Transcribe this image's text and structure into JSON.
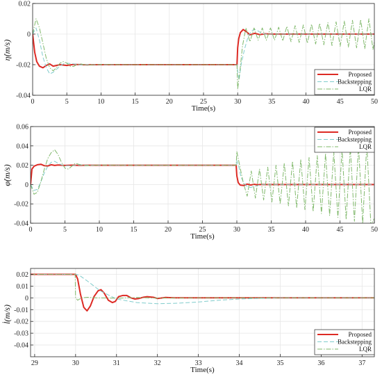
{
  "chart_data": [
    {
      "type": "line",
      "ylabel": "η̇(m/s)",
      "xlabel": "Time(s)",
      "xlim": [
        0,
        50
      ],
      "ylim": [
        -0.04,
        0.02
      ],
      "xticks": [
        0,
        5,
        10,
        15,
        20,
        25,
        30,
        35,
        40,
        45,
        50
      ],
      "yticks": [
        -0.04,
        -0.02,
        0,
        0.02
      ],
      "ytick_labels": [
        "-0.04",
        "-0.02",
        "0",
        "0.02"
      ],
      "grid": true,
      "legend_position": "bottom-right",
      "series": [
        {
          "name": "Proposed",
          "color": "#dd2a24",
          "style": "solid",
          "x": [
            0,
            0.3,
            0.6,
            1.0,
            1.5,
            2.0,
            2.5,
            3.0,
            3.5,
            4.0,
            5.0,
            6.0,
            8.0,
            10.0,
            15.0,
            20.0,
            25.0,
            29.9,
            30.0,
            30.15,
            30.4,
            30.8,
            31.3,
            31.8,
            32.5,
            33.2,
            34.0,
            35.0,
            37.0,
            40.0,
            45.0,
            50.0
          ],
          "y": [
            0,
            -0.012,
            -0.018,
            -0.021,
            -0.022,
            -0.0205,
            -0.0195,
            -0.021,
            -0.0205,
            -0.02,
            -0.0205,
            -0.0198,
            -0.0201,
            -0.02,
            -0.02,
            -0.02,
            -0.02,
            -0.02,
            -0.009,
            -0.003,
            0.001,
            0.003,
            0.0015,
            -0.0005,
            0.0005,
            -0.0003,
            0.0002,
            0,
            0,
            0,
            0,
            0
          ]
        },
        {
          "name": "Backstepping",
          "color": "#80cccc",
          "style": "dashed",
          "x": [
            0,
            0.5,
            1.0,
            1.5,
            2.0,
            2.5,
            3.0,
            3.5,
            4.0,
            4.5,
            5.0,
            6.0,
            7.0,
            8.0,
            10.0,
            15.0,
            20.0,
            25.0,
            29.9,
            30.0,
            30.2,
            30.5,
            31.0,
            31.5,
            32.0,
            32.5,
            33.0,
            33.5,
            34.0,
            35.0,
            36.0,
            37.0,
            40.0,
            45.0,
            50.0
          ],
          "y": [
            0,
            0.004,
            -0.004,
            -0.015,
            -0.022,
            -0.026,
            -0.025,
            -0.023,
            -0.021,
            -0.0195,
            -0.019,
            -0.0195,
            -0.0202,
            -0.02,
            -0.02,
            -0.02,
            -0.02,
            -0.02,
            -0.02,
            -0.024,
            -0.03,
            -0.02,
            -0.01,
            -0.002,
            0.002,
            0.003,
            0.002,
            0.0005,
            0,
            0,
            0,
            0,
            0,
            0,
            0
          ]
        },
        {
          "name": "LQR",
          "color": "#7fb86a",
          "style": "dashdot",
          "x": [
            0,
            0.5,
            1.0,
            1.5,
            2.0,
            2.5,
            3.0,
            3.5,
            4.0,
            4.5,
            5.0,
            5.5,
            6.0,
            6.5,
            7.0,
            8.0,
            10.0,
            15.0,
            20.0,
            25.0,
            29.9,
            30.0,
            30.3,
            30.7,
            31.2,
            31.8,
            32.4,
            33.0,
            33.6,
            34.2,
            34.8,
            35.4,
            36.0,
            36.6,
            37.2,
            37.8,
            38.4,
            39.0,
            39.6,
            40.2,
            40.8,
            41.4,
            42.0,
            42.6,
            43.2,
            43.8,
            44.4,
            45.0,
            45.6,
            46.2,
            46.8,
            47.4,
            48.0,
            48.6,
            49.2,
            49.8,
            50.0
          ],
          "y": [
            0,
            0.01,
            0.004,
            -0.006,
            -0.016,
            -0.022,
            -0.024,
            -0.022,
            -0.019,
            -0.018,
            -0.019,
            -0.021,
            -0.0212,
            -0.0198,
            -0.0195,
            -0.0203,
            -0.0198,
            -0.02,
            -0.02,
            -0.02,
            -0.02,
            -0.036,
            -0.025,
            -0.008,
            0.004,
            -0.005,
            0.004,
            -0.004,
            0.004,
            -0.004,
            0.004,
            -0.004,
            0.0045,
            -0.0045,
            0.005,
            -0.005,
            0.0055,
            -0.0055,
            0.006,
            -0.006,
            0.0065,
            -0.0065,
            0.007,
            -0.007,
            0.0075,
            -0.0075,
            0.008,
            -0.008,
            0.0085,
            -0.0085,
            0.009,
            -0.009,
            0.0095,
            -0.0095,
            0.01,
            -0.01,
            -0.005
          ]
        }
      ]
    },
    {
      "type": "line",
      "ylabel": "φ̇(m/s)",
      "xlabel": "Time(s)",
      "xlim": [
        0,
        50
      ],
      "ylim": [
        -0.04,
        0.06
      ],
      "xticks": [
        0,
        5,
        10,
        15,
        20,
        25,
        30,
        35,
        40,
        45,
        50
      ],
      "yticks": [
        -0.04,
        -0.02,
        0,
        0.02,
        0.04,
        0.06
      ],
      "ytick_labels": [
        "-0.04",
        "-0.02",
        "0",
        "0.02",
        "0.04",
        "0.06"
      ],
      "grid": true,
      "legend_position": "top-right",
      "series": [
        {
          "name": "Proposed",
          "color": "#dd2a24",
          "style": "solid",
          "x": [
            0,
            0.2,
            0.5,
            1.0,
            1.5,
            2.0,
            2.5,
            3.0,
            3.5,
            4.0,
            5.0,
            6.0,
            7.0,
            8.0,
            10.0,
            15.0,
            20.0,
            25.0,
            29.9,
            30.0,
            30.2,
            30.5,
            31.0,
            31.5,
            32.0,
            32.5,
            33.0,
            33.5,
            34.0,
            35.0,
            37.0,
            40.0,
            45.0,
            50.0
          ],
          "y": [
            0,
            0.016,
            0.019,
            0.0205,
            0.021,
            0.0195,
            0.0192,
            0.0205,
            0.0198,
            0.0202,
            0.0198,
            0.0201,
            0.0199,
            0.02,
            0.02,
            0.02,
            0.02,
            0.02,
            0.02,
            0.009,
            0.002,
            -0.0005,
            -0.001,
            0.0005,
            -0.0005,
            0.0003,
            -0.0002,
            0.0001,
            0,
            0,
            0,
            0,
            0,
            0
          ]
        },
        {
          "name": "Backstepping",
          "color": "#80cccc",
          "style": "dashed",
          "x": [
            0,
            0.5,
            1.0,
            1.5,
            2.0,
            2.5,
            3.0,
            3.5,
            4.0,
            4.5,
            5.0,
            6.0,
            7.0,
            8.0,
            10.0,
            15.0,
            20.0,
            25.0,
            29.9,
            30.0,
            30.3,
            30.6,
            31.0,
            31.5,
            32.0,
            32.5,
            33.0,
            33.5,
            34.0,
            35.0,
            36.0,
            37.0,
            40.0,
            45.0,
            50.0
          ],
          "y": [
            0,
            -0.006,
            -0.005,
            0.003,
            0.012,
            0.019,
            0.023,
            0.024,
            0.022,
            0.0205,
            0.0195,
            0.0195,
            0.0203,
            0.02,
            0.02,
            0.02,
            0.02,
            0.02,
            0.02,
            0.025,
            0.018,
            0.008,
            0.002,
            -0.002,
            -0.003,
            -0.002,
            -0.001,
            0,
            0,
            0,
            0,
            0,
            0,
            0,
            0
          ]
        },
        {
          "name": "LQR",
          "color": "#7fb86a",
          "style": "dashdot",
          "x": [
            0,
            0.5,
            1.0,
            1.5,
            2.0,
            2.5,
            3.0,
            3.5,
            4.0,
            4.5,
            5.0,
            5.5,
            6.0,
            6.5,
            7.0,
            8.0,
            10.0,
            15.0,
            20.0,
            25.0,
            29.9,
            30.0,
            30.4,
            30.9,
            31.5,
            32.1,
            32.7,
            33.3,
            33.9,
            34.5,
            35.1,
            35.7,
            36.3,
            36.9,
            37.5,
            38.1,
            38.7,
            39.3,
            39.9,
            40.5,
            41.1,
            41.7,
            42.3,
            42.9,
            43.5,
            44.1,
            44.7,
            45.3,
            45.9,
            46.5,
            47.1,
            47.7,
            48.3,
            48.9,
            49.5,
            50.0
          ],
          "y": [
            0,
            -0.01,
            -0.008,
            0.003,
            0.016,
            0.027,
            0.033,
            0.036,
            0.031,
            0.023,
            0.017,
            0.016,
            0.019,
            0.022,
            0.021,
            0.0195,
            0.0202,
            0.02,
            0.02,
            0.02,
            0.02,
            0.034,
            0.02,
            0.003,
            -0.012,
            0.014,
            -0.014,
            0.016,
            -0.016,
            0.018,
            -0.018,
            0.02,
            -0.02,
            0.022,
            -0.022,
            0.024,
            -0.024,
            0.026,
            -0.026,
            0.028,
            -0.028,
            0.03,
            -0.03,
            0.032,
            -0.032,
            0.034,
            -0.034,
            0.036,
            -0.036,
            0.038,
            -0.038,
            0.04,
            -0.04,
            0.042,
            -0.042,
            -0.035
          ]
        }
      ]
    },
    {
      "type": "line",
      "ylabel": "l̇(m/s)",
      "xlabel": "Time(s)",
      "xlim": [
        28.9,
        37.3
      ],
      "ylim": [
        -0.05,
        0.025
      ],
      "xticks": [
        29,
        30,
        31,
        32,
        33,
        34,
        35,
        36,
        37
      ],
      "yticks": [
        -0.04,
        -0.03,
        -0.02,
        -0.01,
        0,
        0.01,
        0.02
      ],
      "ytick_labels": [
        "-0.04",
        "-0.03",
        "-0.02",
        "-0.01",
        "0",
        "0.01",
        "0.02"
      ],
      "grid": true,
      "legend_position": "bottom-right",
      "series": [
        {
          "name": "Proposed",
          "color": "#dd2a24",
          "style": "solid",
          "x": [
            28.9,
            29.5,
            30.0,
            30.05,
            30.12,
            30.2,
            30.28,
            30.36,
            30.45,
            30.55,
            30.62,
            30.7,
            30.8,
            30.9,
            30.97,
            31.05,
            31.15,
            31.25,
            31.35,
            31.45,
            31.55,
            31.65,
            31.75,
            31.9,
            32.0,
            32.2,
            32.4,
            32.6,
            32.8,
            33.0,
            33.5,
            34.0,
            35.0,
            36.0,
            37.3
          ],
          "y": [
            0.02,
            0.02,
            0.02,
            0.016,
            0.003,
            -0.008,
            -0.011,
            -0.007,
            0.001,
            0.006,
            0.007,
            0.004,
            -0.002,
            -0.004,
            -0.003,
            0.001,
            0.002,
            0.002,
            0.0,
            -0.001,
            -0.0005,
            0.0005,
            0.001,
            0.0005,
            -0.0005,
            0.0003,
            0,
            0,
            0,
            0,
            0,
            0,
            0,
            0,
            0
          ]
        },
        {
          "name": "Backstepping",
          "color": "#80cccc",
          "style": "dashed",
          "x": [
            28.9,
            29.5,
            30.0,
            30.1,
            30.3,
            30.6,
            31.0,
            31.5,
            32.0,
            32.5,
            33.0,
            33.5,
            34.0,
            34.5,
            35.0,
            36.0,
            37.3
          ],
          "y": [
            0.02,
            0.02,
            0.02,
            0.019,
            0.014,
            0.006,
            -0.001,
            -0.004,
            -0.005,
            -0.0045,
            -0.0035,
            -0.002,
            -0.001,
            -0.0004,
            0,
            0,
            0
          ]
        },
        {
          "name": "LQR",
          "color": "#7fb86a",
          "style": "dashdot",
          "x": [
            28.9,
            29.5,
            29.99,
            30.0,
            30.05,
            30.15,
            30.3,
            30.5,
            31.0,
            31.5,
            32.0,
            33.0,
            34.0,
            35.0,
            36.0,
            37.3
          ],
          "y": [
            0.02,
            0.02,
            0.02,
            0.0,
            -0.002,
            0.0,
            0.0005,
            0.0,
            -0.0003,
            0.0003,
            -0.0002,
            0.0,
            0,
            0,
            0,
            0
          ]
        }
      ]
    }
  ]
}
